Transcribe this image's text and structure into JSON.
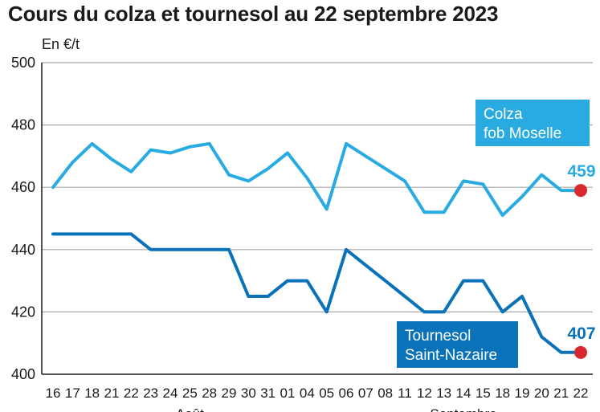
{
  "chart_data": {
    "type": "line",
    "title": "Cours du colza et tournesol au 22 septembre 2023",
    "ylabel": "En €/t",
    "ylim": [
      400,
      500
    ],
    "yticks": [
      400,
      420,
      440,
      460,
      480,
      500
    ],
    "grid": true,
    "categories": [
      "16",
      "17",
      "18",
      "21",
      "22",
      "23",
      "24",
      "25",
      "28",
      "29",
      "30",
      "31",
      "01",
      "04",
      "05",
      "06",
      "07",
      "08",
      "11",
      "12",
      "13",
      "14",
      "15",
      "18",
      "19",
      "20",
      "21",
      "22"
    ],
    "months": [
      {
        "label": "Août",
        "from": 0,
        "to": 14
      },
      {
        "label": "Septembre",
        "from": 15,
        "to": 27
      }
    ],
    "series": [
      {
        "name": "Colza fob Moselle",
        "name_lines": [
          "Colza",
          "fob Moselle"
        ],
        "color": "#29abe2",
        "end_label": "459",
        "values": [
          460,
          468,
          474,
          469,
          465,
          472,
          471,
          473,
          474,
          464,
          462,
          466,
          471,
          463,
          453,
          474,
          470,
          466,
          462,
          452,
          452,
          462,
          461,
          451,
          457,
          464,
          459,
          459
        ]
      },
      {
        "name": "Tournesol Saint-Nazaire",
        "name_lines": [
          "Tournesol",
          "Saint-Nazaire"
        ],
        "color": "#0a72b8",
        "end_label": "407",
        "values": [
          445,
          445,
          445,
          445,
          445,
          440,
          440,
          440,
          440,
          440,
          425,
          425,
          430,
          430,
          420,
          440,
          435,
          430,
          425,
          420,
          420,
          430,
          430,
          420,
          425,
          412,
          407,
          407
        ]
      }
    ],
    "end_marker_color": "#d7282f"
  }
}
